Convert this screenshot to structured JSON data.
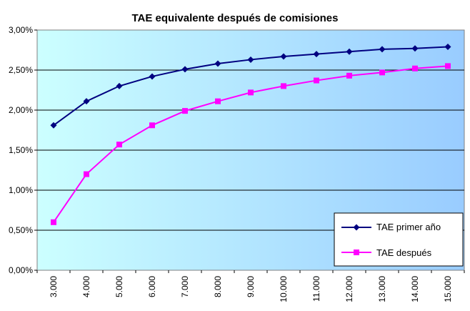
{
  "chart_data": {
    "type": "line",
    "title": "TAE equivalente después de comisiones",
    "xlabel": "",
    "ylabel": "",
    "categories": [
      "3.000",
      "4.000",
      "5.000",
      "6.000",
      "7.000",
      "8.000",
      "9.000",
      "10.000",
      "11.000",
      "12.000",
      "13.000",
      "14.000",
      "15.000"
    ],
    "series": [
      {
        "name": "TAE primer año",
        "color": "#000080",
        "marker": "diamond",
        "values": [
          1.81,
          2.11,
          2.3,
          2.42,
          2.51,
          2.58,
          2.63,
          2.67,
          2.7,
          2.73,
          2.76,
          2.77,
          2.79
        ]
      },
      {
        "name": "TAE después",
        "color": "#ff00ff",
        "marker": "square",
        "values": [
          0.6,
          1.2,
          1.57,
          1.81,
          1.99,
          2.11,
          2.22,
          2.3,
          2.37,
          2.43,
          2.47,
          2.52,
          2.55
        ]
      }
    ],
    "ylim": [
      0,
      3
    ],
    "yticks": [
      "0,00%",
      "0,50%",
      "1,00%",
      "1,50%",
      "2,00%",
      "2,50%",
      "3,00%"
    ],
    "grid": true,
    "legend": "bottom-right",
    "plot_background": [
      "#ccffff",
      "#99ccff"
    ]
  }
}
